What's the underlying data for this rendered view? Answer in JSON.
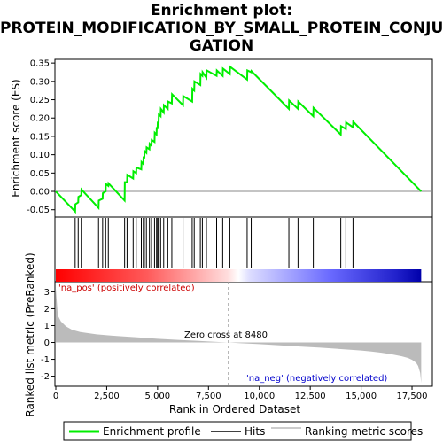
{
  "title_lines": [
    "Enrichment plot:",
    "PROTEIN_MODIFICATION_BY_SMALL_PROTEIN_CONJU",
    "GATION"
  ],
  "chart_data": {
    "type": "line",
    "title": "Enrichment plot: PROTEIN_MODIFICATION_BY_SMALL_PROTEIN_CONJUGATION",
    "x_range": [
      0,
      18500
    ],
    "n_genes": 17950,
    "xticks": [
      0,
      2500,
      5000,
      7500,
      10000,
      12500,
      15000,
      17500
    ],
    "xtick_labels": [
      "0",
      "2,500",
      "5,000",
      "7,500",
      "10,000",
      "12,500",
      "15,000",
      "17,500"
    ],
    "xlabel": "Rank in Ordered Dataset",
    "top_panel": {
      "ylabel": "Enrichment score (ES)",
      "ylim": [
        -0.07,
        0.36
      ],
      "yticks": [
        -0.05,
        0.0,
        0.05,
        0.1,
        0.15,
        0.2,
        0.25,
        0.3,
        0.35
      ],
      "ytick_labels": [
        "-0.05",
        "0.00",
        "0.05",
        "0.10",
        "0.15",
        "0.20",
        "0.25",
        "0.30",
        "0.35"
      ],
      "series": [
        {
          "name": "Enrichment profile",
          "color": "#00ee00",
          "x": [
            0,
            950,
            960,
            1100,
            1110,
            1250,
            1260,
            2100,
            2110,
            2300,
            2310,
            2450,
            2460,
            2580,
            2590,
            3380,
            3390,
            3500,
            3510,
            3800,
            3810,
            3950,
            3960,
            4200,
            4210,
            4300,
            4310,
            4350,
            4360,
            4450,
            4460,
            4600,
            4610,
            4700,
            4710,
            4850,
            4860,
            4950,
            4960,
            5000,
            5010,
            5050,
            5060,
            5150,
            5160,
            5300,
            5310,
            5500,
            5510,
            5700,
            5710,
            6250,
            6260,
            6700,
            6710,
            6800,
            6810,
            7100,
            7110,
            7200,
            7210,
            7400,
            7410,
            7900,
            7910,
            8200,
            8210,
            8550,
            8560,
            9400,
            9410,
            9600,
            9610,
            11450,
            11460,
            11900,
            11910,
            12650,
            12660,
            14000,
            14010,
            14250,
            14260,
            14600,
            14610,
            17950
          ],
          "y": [
            0.0,
            -0.055,
            -0.035,
            -0.03,
            -0.015,
            -0.01,
            0.005,
            -0.045,
            -0.025,
            -0.02,
            -0.005,
            0.0,
            0.02,
            0.015,
            0.022,
            -0.025,
            0.025,
            0.025,
            0.045,
            0.035,
            0.055,
            0.05,
            0.065,
            0.06,
            0.08,
            0.075,
            0.095,
            0.09,
            0.11,
            0.105,
            0.12,
            0.115,
            0.13,
            0.125,
            0.14,
            0.135,
            0.16,
            0.155,
            0.175,
            0.17,
            0.19,
            0.185,
            0.21,
            0.205,
            0.225,
            0.215,
            0.235,
            0.225,
            0.245,
            0.24,
            0.265,
            0.235,
            0.26,
            0.245,
            0.28,
            0.275,
            0.3,
            0.29,
            0.32,
            0.315,
            0.325,
            0.31,
            0.33,
            0.315,
            0.33,
            0.315,
            0.335,
            0.32,
            0.34,
            0.305,
            0.33,
            0.325,
            0.328,
            0.225,
            0.248,
            0.225,
            0.245,
            0.205,
            0.228,
            0.155,
            0.178,
            0.17,
            0.188,
            0.175,
            0.19,
            0.0
          ]
        }
      ]
    },
    "hits_panel": {
      "series_name": "Hits",
      "hit_positions": [
        950,
        1100,
        1250,
        2100,
        2300,
        2450,
        2580,
        3380,
        3500,
        3800,
        3950,
        4200,
        4300,
        4350,
        4450,
        4600,
        4700,
        4850,
        4950,
        5000,
        5050,
        5150,
        5300,
        5500,
        5700,
        6250,
        6700,
        6800,
        7100,
        7200,
        7400,
        7900,
        8200,
        8550,
        9400,
        9600,
        11450,
        11900,
        12650,
        14000,
        14250,
        14600
      ]
    },
    "bottom_panel": {
      "ylabel": "Ranked list metric (PreRanked)",
      "ylim": [
        -2.6,
        3.6
      ],
      "yticks": [
        -2,
        -1,
        0,
        1,
        2,
        3
      ],
      "ytick_labels": [
        "-2",
        "-1",
        "0",
        "1",
        "2",
        "3"
      ],
      "series_name": "Ranking metric scores",
      "metric_x": [
        0,
        100,
        250,
        500,
        800,
        1200,
        2000,
        3000,
        4000,
        5000,
        6000,
        7000,
        8000,
        8480,
        9000,
        10000,
        11000,
        12000,
        13000,
        14000,
        15000,
        15500,
        16000,
        16500,
        17000,
        17300,
        17500,
        17700,
        17800,
        17900,
        17950
      ],
      "metric_y": [
        3.2,
        1.6,
        1.25,
        0.95,
        0.75,
        0.62,
        0.48,
        0.38,
        0.3,
        0.22,
        0.15,
        0.09,
        0.03,
        0.0,
        -0.04,
        -0.1,
        -0.17,
        -0.24,
        -0.31,
        -0.39,
        -0.48,
        -0.54,
        -0.61,
        -0.7,
        -0.82,
        -0.92,
        -1.03,
        -1.2,
        -1.4,
        -1.8,
        -2.4
      ],
      "zero_cross_label": "Zero cross at 8480",
      "zero_cross": 8480,
      "pos_label": "'na_pos' (positively correlated)",
      "neg_label": "'na_neg' (negatively correlated)"
    },
    "legend": {
      "placement": "bottom",
      "entries": [
        {
          "name": "Enrichment profile",
          "color": "#00ee00"
        },
        {
          "name": "Hits",
          "color": "#000000"
        },
        {
          "name": "Ranking metric scores",
          "color": "#bbbbbb"
        }
      ]
    }
  }
}
